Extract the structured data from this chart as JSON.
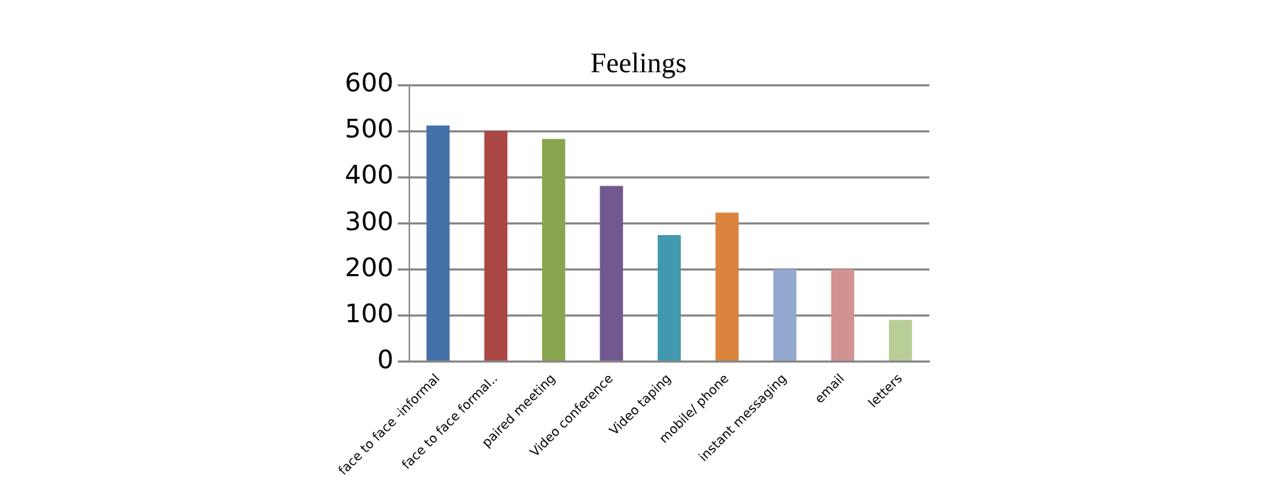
{
  "chart_data": {
    "type": "bar",
    "title": "Feelings",
    "categories": [
      "face to face -informal",
      "face to face formal..",
      "paired meeting",
      "Video conference",
      "Video taping",
      "mobile/ phone",
      "instant messaging",
      "email",
      "letters"
    ],
    "values": [
      512,
      500,
      483,
      381,
      274,
      323,
      200,
      200,
      90
    ],
    "colors": [
      "#4470a8",
      "#aa4644",
      "#89a54e",
      "#71588f",
      "#4198af",
      "#db843d",
      "#93a9cf",
      "#d19392",
      "#b9cd96"
    ],
    "ylim": [
      0,
      600
    ],
    "yticks": [
      0,
      100,
      200,
      300,
      400,
      500,
      600
    ],
    "grid": "y",
    "legend": false
  }
}
